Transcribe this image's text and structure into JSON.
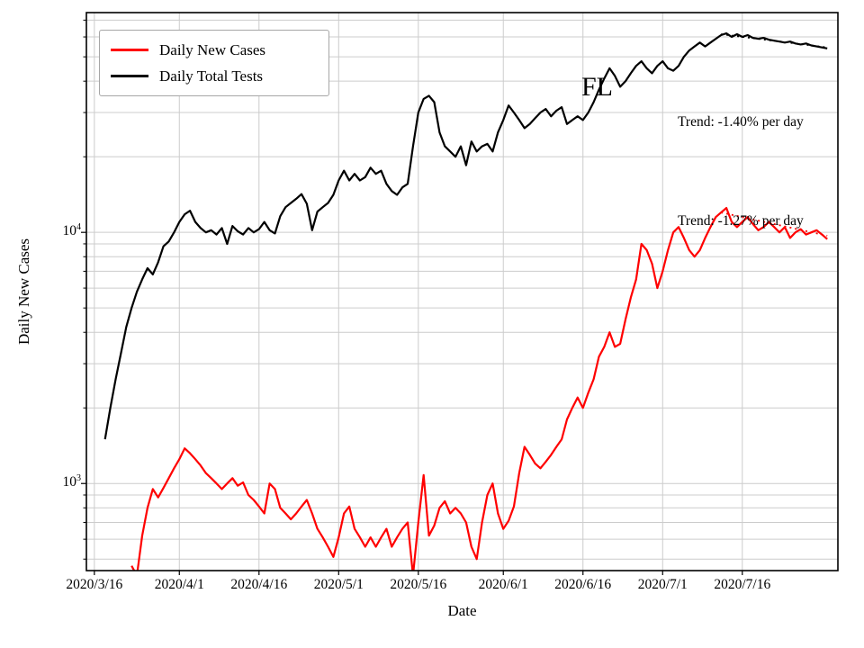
{
  "annotations": {
    "state_label": "FL",
    "trend_tests": "Trend: -1.40% per day",
    "trend_cases": "Trend: -1.27% per day"
  },
  "axes": {
    "xlabel": "Date",
    "ylabel": "Daily New Cases"
  },
  "legend": {
    "items": [
      {
        "label": "Daily New Cases",
        "color": "#ff0000"
      },
      {
        "label": "Daily Total Tests",
        "color": "#000000"
      }
    ]
  },
  "colors": {
    "grid": "#cccccc",
    "axis": "#000000",
    "background": "#ffffff",
    "cases": "#ff0000",
    "tests": "#000000"
  },
  "chart_data": {
    "type": "line",
    "title": "",
    "xlabel": "Date",
    "ylabel": "Daily New Cases",
    "y_scale": "log",
    "ylim": [
      450,
      75000
    ],
    "x_axis": {
      "unit": "days since 2020/3/16",
      "lim": [
        -1.5,
        140
      ]
    },
    "x_ticks": [
      {
        "day": 0,
        "label": "2020/3/16"
      },
      {
        "day": 16,
        "label": "2020/4/1"
      },
      {
        "day": 31,
        "label": "2020/4/16"
      },
      {
        "day": 46,
        "label": "2020/5/1"
      },
      {
        "day": 61,
        "label": "2020/5/16"
      },
      {
        "day": 77,
        "label": "2020/6/1"
      },
      {
        "day": 92,
        "label": "2020/6/16"
      },
      {
        "day": 107,
        "label": "2020/7/1"
      },
      {
        "day": 122,
        "label": "2020/7/16"
      }
    ],
    "y_ticks": [
      {
        "value": 1000,
        "exp": 3
      },
      {
        "value": 10000,
        "exp": 4
      }
    ],
    "grid": true,
    "legend_position": "upper-left",
    "series": [
      {
        "name": "Daily New Cases",
        "color": "#ff0000",
        "start_day": 7,
        "values": [
          470,
          430,
          620,
          800,
          950,
          880,
          960,
          1050,
          1150,
          1250,
          1380,
          1320,
          1250,
          1180,
          1100,
          1050,
          1000,
          950,
          1000,
          1050,
          980,
          1010,
          900,
          860,
          810,
          760,
          1000,
          950,
          800,
          760,
          720,
          760,
          810,
          860,
          760,
          660,
          610,
          560,
          510,
          610,
          760,
          810,
          660,
          610,
          560,
          610,
          560,
          610,
          660,
          560,
          610,
          660,
          700,
          430,
          700,
          1080,
          620,
          680,
          800,
          850,
          760,
          800,
          760,
          700,
          560,
          500,
          700,
          900,
          1000,
          760,
          660,
          710,
          810,
          1100,
          1400,
          1300,
          1200,
          1150,
          1220,
          1300,
          1400,
          1500,
          1800,
          2000,
          2200,
          2000,
          2300,
          2600,
          3200,
          3500,
          4000,
          3500,
          3600,
          4500,
          5500,
          6500,
          9000,
          8500,
          7500,
          6000,
          7000,
          8500,
          10000,
          10500,
          9500,
          8500,
          8000,
          8500,
          9500,
          10500,
          11500,
          12000,
          12500,
          11000,
          10500,
          11000,
          11500,
          10800,
          10200,
          10500,
          11000,
          10500,
          10000,
          10500,
          9500,
          10000,
          10300,
          9800,
          10000,
          10200,
          9800,
          9400
        ]
      },
      {
        "name": "Daily Total Tests",
        "color": "#000000",
        "start_day": 2,
        "values": [
          1500,
          2000,
          2600,
          3300,
          4200,
          5000,
          5800,
          6500,
          7200,
          6800,
          7600,
          8800,
          9200,
          10000,
          11000,
          11800,
          12200,
          11000,
          10400,
          10000,
          10200,
          9800,
          10400,
          9000,
          10600,
          10100,
          9800,
          10400,
          10000,
          10300,
          11000,
          10200,
          9900,
          11600,
          12600,
          13100,
          13600,
          14200,
          13000,
          10200,
          12100,
          12600,
          13100,
          14100,
          16100,
          17600,
          16100,
          17100,
          16100,
          16600,
          18100,
          17100,
          17600,
          15600,
          14600,
          14100,
          15100,
          15600,
          22000,
          30000,
          34000,
          35000,
          33000,
          25000,
          22000,
          21000,
          20000,
          22000,
          18500,
          23000,
          21000,
          22000,
          22500,
          21000,
          25000,
          28000,
          32000,
          30000,
          28000,
          26000,
          27000,
          28500,
          30000,
          31000,
          29000,
          30500,
          31500,
          27000,
          28000,
          29000,
          28000,
          30000,
          33000,
          37000,
          41000,
          45000,
          42000,
          38000,
          40000,
          43000,
          46000,
          48000,
          45000,
          43000,
          46000,
          48000,
          45000,
          44000,
          46000,
          50000,
          53000,
          55000,
          57000,
          55000,
          57000,
          59000,
          61000,
          62000,
          60000,
          61500,
          60000,
          61000,
          59500,
          59000,
          59500,
          58500,
          58000,
          57500,
          57000,
          57500,
          56500,
          56000,
          56500,
          55500,
          55000,
          54500,
          54000
        ]
      }
    ],
    "trend_lines": [
      {
        "name": "tests-trend",
        "color": "#000000",
        "x_start_day": 118,
        "x_end_day": 138,
        "y_start": 61500,
        "y_end": 54500,
        "rate_label": "-1.40% per day"
      },
      {
        "name": "cases-trend",
        "color": "#ff0000",
        "x_start_day": 118,
        "x_end_day": 138,
        "y_start": 12000,
        "y_end": 9700,
        "rate_label": "-1.27% per day"
      }
    ]
  }
}
